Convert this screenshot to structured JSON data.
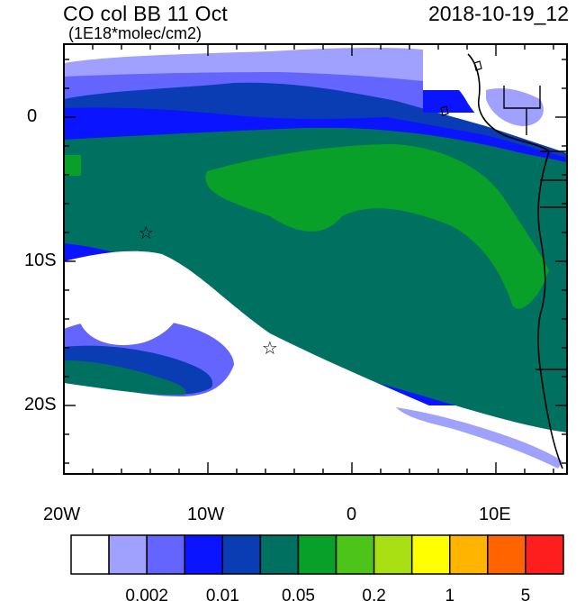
{
  "header": {
    "title": "CO col BB 11 Oct",
    "units": "(1E18*molec/cm2)",
    "datetime": "2018-10-19_12"
  },
  "axes": {
    "lat_ticks": [
      "0",
      "10S",
      "20S"
    ],
    "lon_ticks": [
      "20W",
      "10W",
      "0",
      "10E"
    ]
  },
  "markers": [
    {
      "name": "star-west",
      "symbol": "☆",
      "lon": -14.3,
      "lat": -8.0
    },
    {
      "name": "star-south",
      "symbol": "☆",
      "lon": -5.7,
      "lat": -16.0
    }
  ],
  "colorbar": {
    "colors": [
      "#ffffff",
      "#a0a0ff",
      "#6464ff",
      "#0a14ff",
      "#0a3cb4",
      "#007060",
      "#08a028",
      "#4cc41a",
      "#a8e014",
      "#ffff00",
      "#ffb400",
      "#ff6400",
      "#ff1e1e"
    ],
    "labels": [
      "0.002",
      "0.01",
      "0.05",
      "0.2",
      "1",
      "5"
    ]
  },
  "colors": {
    "ocean_background": "#ffffff",
    "coastline": "#000000"
  }
}
